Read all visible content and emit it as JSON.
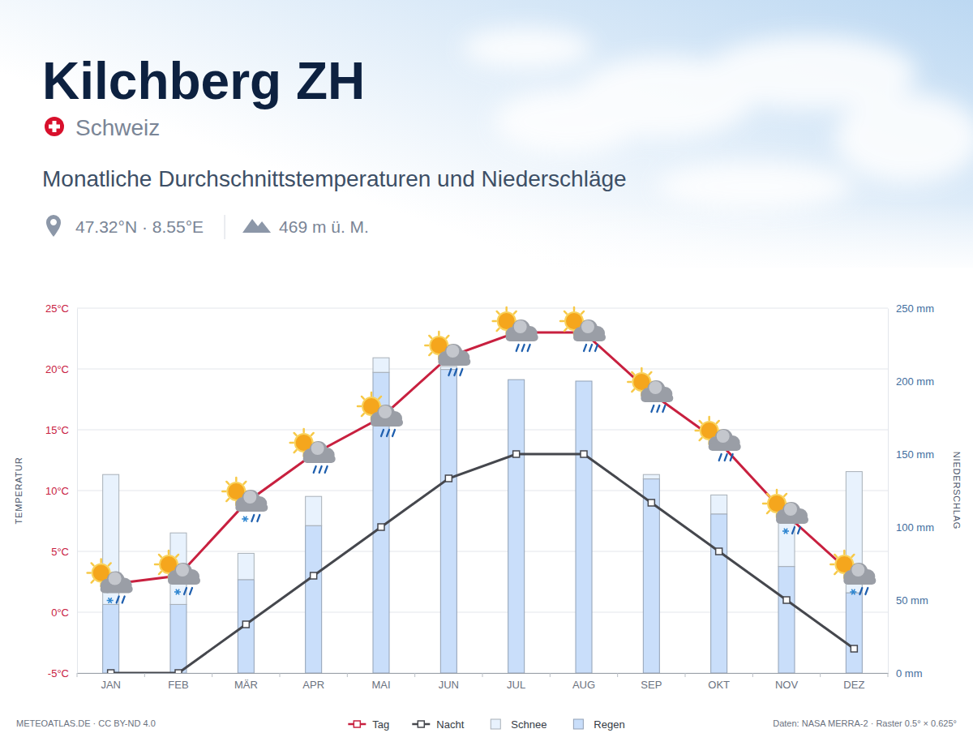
{
  "chart_data": {
    "type": "combo",
    "title": "Kilchberg ZH",
    "subtitle": "Monatliche Durchschnittstemperaturen und Niederschläge",
    "annotations": [
      "Schweiz",
      "47.32°N · 8.55°E",
      "469 m ü. M.",
      "METEOATLAS.DE · CC BY-ND 4.0",
      "Daten: NASA MERRA-2 · Raster 0.5° × 0.625°"
    ],
    "y_label": "TEMPERATUR",
    "y2_label": "NIEDERSCHLAG",
    "categories": [
      "JAN",
      "FEB",
      "MÄR",
      "APR",
      "MAI",
      "JUN",
      "JUL",
      "AUG",
      "SEP",
      "OKT",
      "NOV",
      "DEZ"
    ],
    "series": [
      {
        "name": "Tag",
        "type": "line",
        "color": "#c8203f",
        "marker": "square",
        "values": [
          2.3,
          3.0,
          9.0,
          13.0,
          16.0,
          21.0,
          23.0,
          23.0,
          18.0,
          14.0,
          8.0,
          3.0
        ]
      },
      {
        "name": "Nacht",
        "type": "line",
        "color": "#45474d",
        "marker": "square",
        "values": [
          -5.0,
          -5.0,
          -1.0,
          3.0,
          7.0,
          11.0,
          13.0,
          13.0,
          9.0,
          5.0,
          1.0,
          -3.0
        ]
      },
      {
        "name": "Schnee",
        "type": "bar",
        "axis": "y2",
        "color": "#e8f2fd",
        "values": [
          89,
          49,
          18,
          20,
          10,
          2,
          0,
          0,
          3,
          13,
          33,
          83
        ]
      },
      {
        "name": "Regen",
        "type": "bar",
        "axis": "y2",
        "color": "#c9defa",
        "values": [
          47,
          47,
          64,
          101,
          206,
          208,
          201,
          200,
          133,
          109,
          73,
          55
        ]
      }
    ],
    "stacked": true,
    "ylim": [
      -5,
      25
    ],
    "yticks": [
      {
        "value": -5,
        "label": "-5°C"
      },
      {
        "value": 0,
        "label": "0°C"
      },
      {
        "value": 5,
        "label": "5°C"
      },
      {
        "value": 10,
        "label": "10°C"
      },
      {
        "value": 15,
        "label": "15°C"
      },
      {
        "value": 20,
        "label": "20°C"
      },
      {
        "value": 25,
        "label": "25°C"
      }
    ],
    "y2lim": [
      0,
      250
    ],
    "y2ticks": [
      {
        "value": 0,
        "label": "0 mm"
      },
      {
        "value": 50,
        "label": "50 mm"
      },
      {
        "value": 100,
        "label": "100 mm"
      },
      {
        "value": 150,
        "label": "150 mm"
      },
      {
        "value": 200,
        "label": "200 mm"
      },
      {
        "value": 250,
        "label": "250 mm"
      }
    ],
    "grid": true,
    "legend": "bottom"
  }
}
